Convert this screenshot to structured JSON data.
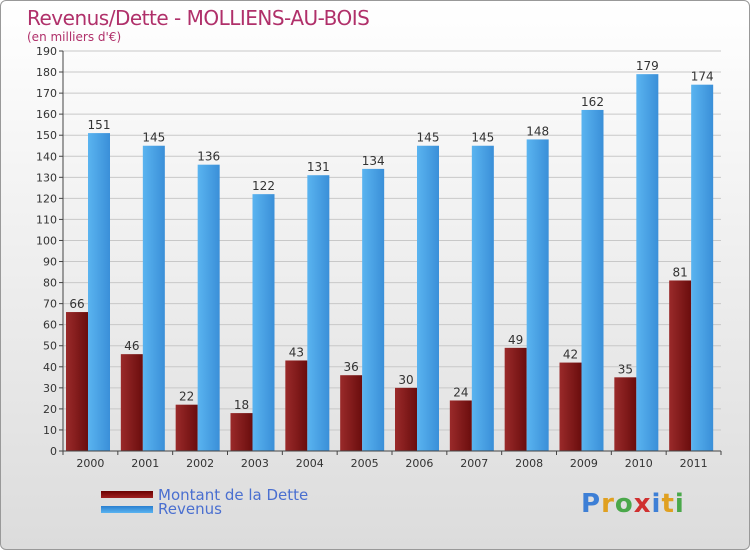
{
  "title": "Revenus/Dette - MOLLIENS-AU-BOIS",
  "subtitle": "(en milliers d'€)",
  "chart_data": {
    "type": "bar",
    "categories": [
      "2000",
      "2001",
      "2002",
      "2003",
      "2004",
      "2005",
      "2006",
      "2007",
      "2008",
      "2009",
      "2010",
      "2011"
    ],
    "series": [
      {
        "name": "Montant de la Dette",
        "color": "#8b1a1a",
        "values": [
          66,
          46,
          22,
          18,
          43,
          36,
          30,
          24,
          49,
          42,
          35,
          81
        ]
      },
      {
        "name": "Revenus",
        "color": "#3d9fe6",
        "values": [
          151,
          145,
          136,
          122,
          131,
          134,
          145,
          145,
          148,
          162,
          179,
          174
        ]
      }
    ],
    "ylim": [
      0,
      190
    ],
    "ytick_step": 10,
    "grid": true,
    "legend_position": "bottom-left"
  },
  "legend": {
    "debt_label": "Montant de la Dette",
    "revenue_label": "Revenus"
  },
  "logo": {
    "text": "Proxiti"
  }
}
